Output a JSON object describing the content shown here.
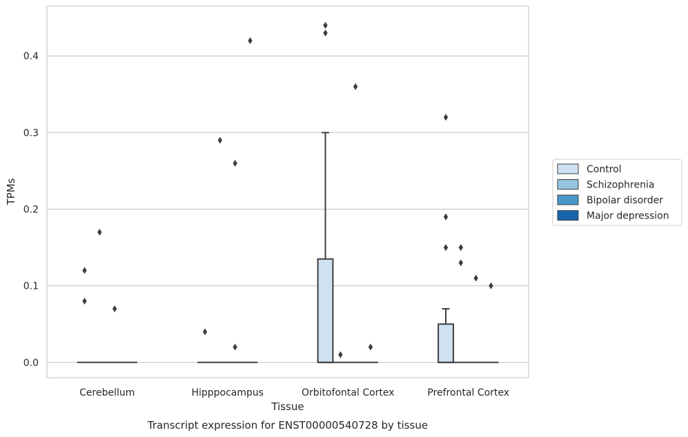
{
  "chart_data": {
    "type": "box",
    "caption": "Transcript expression for ENST00000540728 by tissue",
    "xlabel": "Tissue",
    "ylabel": "TPMs",
    "ylim": [
      -0.02,
      0.465
    ],
    "yticks": [
      0.0,
      0.1,
      0.2,
      0.3,
      0.4
    ],
    "ytick_labels": [
      "0.0",
      "0.1",
      "0.2",
      "0.3",
      "0.4"
    ],
    "grid": true,
    "legend_position": "right",
    "categories": [
      "Cerebellum",
      "Hipppocampus",
      "Orbitofontal Cortex",
      "Prefrontal Cortex"
    ],
    "series": [
      {
        "name": "Control",
        "color": "#d0e1f2",
        "boxes": [
          {
            "min": 0,
            "q1": 0,
            "median": 0,
            "q3": 0,
            "max": 0,
            "outliers": [
              0.12,
              0.08
            ]
          },
          {
            "min": 0,
            "q1": 0,
            "median": 0,
            "q3": 0,
            "max": 0,
            "outliers": [
              0.04
            ]
          },
          {
            "min": 0,
            "q1": 0,
            "median": 0,
            "q3": 0.135,
            "max": 0.3,
            "outliers": [
              0.44,
              0.43
            ]
          },
          {
            "min": 0,
            "q1": 0,
            "median": 0,
            "q3": 0.05,
            "max": 0.07,
            "outliers": [
              0.32,
              0.19,
              0.15
            ]
          }
        ]
      },
      {
        "name": "Schizophrenia",
        "color": "#94c4df",
        "boxes": [
          {
            "min": 0,
            "q1": 0,
            "median": 0,
            "q3": 0,
            "max": 0,
            "outliers": [
              0.17
            ]
          },
          {
            "min": 0,
            "q1": 0,
            "median": 0,
            "q3": 0,
            "max": 0,
            "outliers": [
              0.29
            ]
          },
          {
            "min": 0,
            "q1": 0,
            "median": 0,
            "q3": 0,
            "max": 0,
            "outliers": [
              0.01
            ]
          },
          {
            "min": 0,
            "q1": 0,
            "median": 0,
            "q3": 0,
            "max": 0,
            "outliers": [
              0.15,
              0.13
            ]
          }
        ]
      },
      {
        "name": "Bipolar disorder",
        "color": "#4a98c9",
        "boxes": [
          {
            "min": 0,
            "q1": 0,
            "median": 0,
            "q3": 0,
            "max": 0,
            "outliers": [
              0.07
            ]
          },
          {
            "min": 0,
            "q1": 0,
            "median": 0,
            "q3": 0,
            "max": 0,
            "outliers": [
              0.26,
              0.02
            ]
          },
          {
            "min": 0,
            "q1": 0,
            "median": 0,
            "q3": 0,
            "max": 0,
            "outliers": [
              0.36
            ]
          },
          {
            "min": 0,
            "q1": 0,
            "median": 0,
            "q3": 0,
            "max": 0,
            "outliers": [
              0.11
            ]
          }
        ]
      },
      {
        "name": "Major depression",
        "color": "#1764ab",
        "boxes": [
          {
            "min": 0,
            "q1": 0,
            "median": 0,
            "q3": 0,
            "max": 0,
            "outliers": []
          },
          {
            "min": 0,
            "q1": 0,
            "median": 0,
            "q3": 0,
            "max": 0,
            "outliers": [
              0.42
            ]
          },
          {
            "min": 0,
            "q1": 0,
            "median": 0,
            "q3": 0,
            "max": 0,
            "outliers": [
              0.02
            ]
          },
          {
            "min": 0,
            "q1": 0,
            "median": 0,
            "q3": 0,
            "max": 0,
            "outliers": [
              0.1
            ]
          }
        ]
      }
    ]
  }
}
